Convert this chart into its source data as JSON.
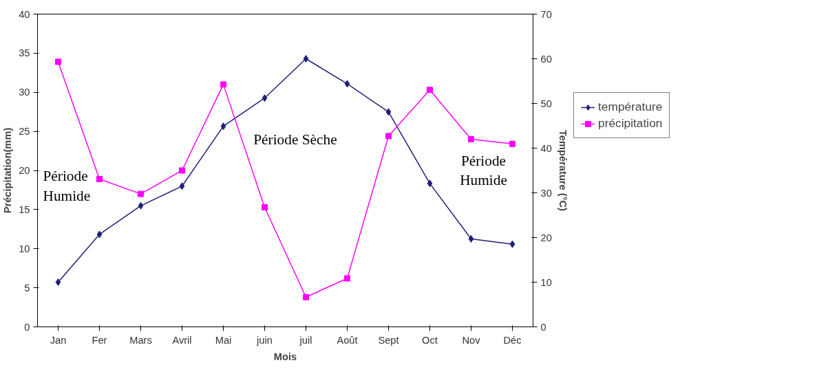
{
  "chart_data": {
    "type": "line",
    "xlabel": "Mois",
    "ylabel": "Précipitation(mm)",
    "y2label": "Température (°C)",
    "categories": [
      "Jan",
      "Fer",
      "Mars",
      "Avril",
      "Mai",
      "juin",
      "juil",
      "Août",
      "Sept",
      "Oct",
      "Nov",
      "Déc"
    ],
    "series": [
      {
        "name": "température",
        "color": "#1f1f7a",
        "marker": "diamond",
        "axis": "y2",
        "values": [
          10.0,
          20.7,
          27.1,
          31.5,
          44.9,
          51.2,
          60.0,
          54.4,
          48.1,
          32.1,
          19.7,
          18.5
        ]
      },
      {
        "name": "précipitation",
        "color": "#ff00ff",
        "marker": "square",
        "values": [
          33.9,
          18.9,
          17.0,
          20.0,
          31.0,
          15.3,
          3.8,
          6.2,
          24.4,
          30.3,
          24.0,
          23.4
        ]
      }
    ],
    "ylim": [
      0,
      40
    ],
    "yticks": [
      0,
      5,
      10,
      15,
      20,
      25,
      30,
      35,
      40
    ],
    "y2lim": [
      0,
      70
    ],
    "y2ticks": [
      0,
      10,
      20,
      30,
      40,
      50,
      60,
      70
    ],
    "grid": false,
    "legend": "right",
    "line_style": "solid",
    "annotations": [
      "Période\nHumide",
      "Période Sèche",
      "Période\nHumide"
    ]
  }
}
